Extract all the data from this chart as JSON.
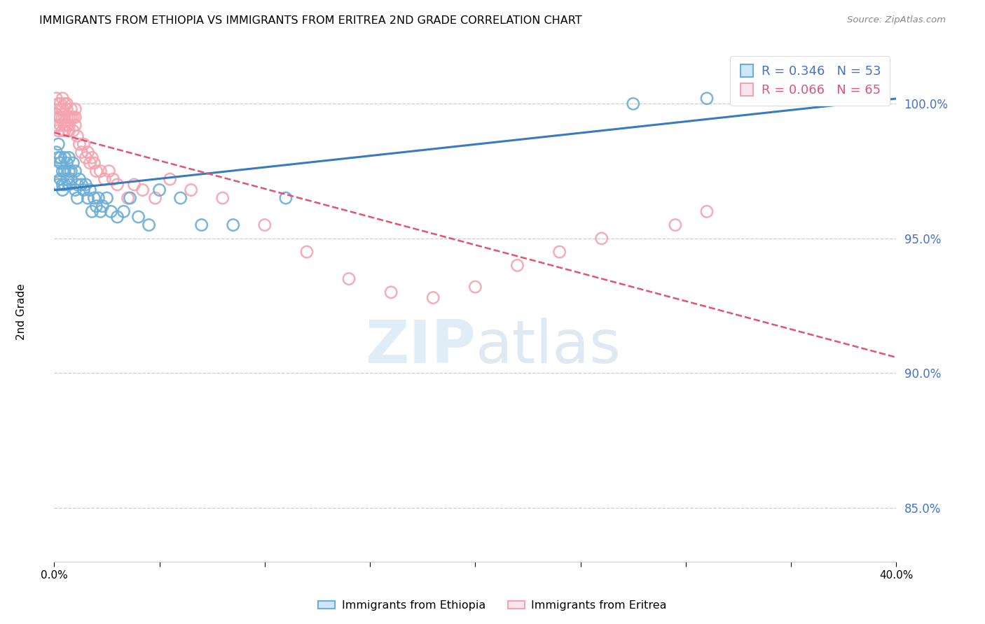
{
  "title": "IMMIGRANTS FROM ETHIOPIA VS IMMIGRANTS FROM ERITREA 2ND GRADE CORRELATION CHART",
  "source": "Source: ZipAtlas.com",
  "ylabel": "2nd Grade",
  "right_yticks": [
    100.0,
    95.0,
    90.0,
    85.0
  ],
  "right_ytick_labels": [
    "100.0%",
    "95.0%",
    "90.0%",
    "85.0%"
  ],
  "ethiopia_color": "#6baed6",
  "eritrea_color": "#f4a4b0",
  "ethiopia_line_color": "#3a7abf",
  "eritrea_line_color": "#e05575",
  "xlim": [
    0.0,
    0.4
  ],
  "ylim": [
    83.0,
    102.0
  ],
  "ethiopia_scatter_x": [
    0.001,
    0.001,
    0.002,
    0.002,
    0.002,
    0.003,
    0.003,
    0.003,
    0.004,
    0.004,
    0.004,
    0.005,
    0.005,
    0.005,
    0.006,
    0.006,
    0.007,
    0.007,
    0.007,
    0.008,
    0.008,
    0.009,
    0.01,
    0.01,
    0.011,
    0.011,
    0.012,
    0.013,
    0.014,
    0.015,
    0.016,
    0.017,
    0.018,
    0.019,
    0.02,
    0.021,
    0.022,
    0.023,
    0.025,
    0.027,
    0.03,
    0.033,
    0.036,
    0.04,
    0.045,
    0.05,
    0.06,
    0.07,
    0.085,
    0.11,
    0.275,
    0.31,
    0.37
  ],
  "ethiopia_scatter_y": [
    98.2,
    97.5,
    98.0,
    97.0,
    98.5,
    97.8,
    97.2,
    98.0,
    97.5,
    97.0,
    96.8,
    97.5,
    97.0,
    98.0,
    97.8,
    97.2,
    97.5,
    97.0,
    98.0,
    97.5,
    97.2,
    97.8,
    97.5,
    96.8,
    97.0,
    96.5,
    97.2,
    97.0,
    96.8,
    97.0,
    96.5,
    96.8,
    96.0,
    96.5,
    96.2,
    96.5,
    96.0,
    96.2,
    96.5,
    96.0,
    95.8,
    96.0,
    96.5,
    95.8,
    95.5,
    96.8,
    96.5,
    95.5,
    95.5,
    96.5,
    100.0,
    100.2,
    100.8
  ],
  "eritrea_scatter_x": [
    0.001,
    0.001,
    0.001,
    0.002,
    0.002,
    0.002,
    0.003,
    0.003,
    0.003,
    0.003,
    0.004,
    0.004,
    0.004,
    0.004,
    0.005,
    0.005,
    0.005,
    0.005,
    0.006,
    0.006,
    0.006,
    0.006,
    0.007,
    0.007,
    0.007,
    0.008,
    0.008,
    0.009,
    0.009,
    0.01,
    0.01,
    0.01,
    0.011,
    0.012,
    0.013,
    0.014,
    0.015,
    0.016,
    0.017,
    0.018,
    0.019,
    0.02,
    0.022,
    0.024,
    0.026,
    0.028,
    0.03,
    0.035,
    0.038,
    0.042,
    0.048,
    0.055,
    0.065,
    0.08,
    0.1,
    0.12,
    0.14,
    0.16,
    0.18,
    0.2,
    0.22,
    0.24,
    0.26,
    0.295,
    0.31
  ],
  "eritrea_scatter_y": [
    99.2,
    99.6,
    100.2,
    99.0,
    99.5,
    100.0,
    99.2,
    99.5,
    99.8,
    100.0,
    99.0,
    99.5,
    99.8,
    100.2,
    99.2,
    99.5,
    99.0,
    100.0,
    99.2,
    99.5,
    99.8,
    100.0,
    99.0,
    99.5,
    99.2,
    99.5,
    99.8,
    99.0,
    99.5,
    99.2,
    99.5,
    99.8,
    98.8,
    98.5,
    98.2,
    98.5,
    98.0,
    98.2,
    97.8,
    98.0,
    97.8,
    97.5,
    97.5,
    97.2,
    97.5,
    97.2,
    97.0,
    96.5,
    97.0,
    96.8,
    96.5,
    97.2,
    96.8,
    96.5,
    95.5,
    94.5,
    93.5,
    93.0,
    92.8,
    93.2,
    94.0,
    94.5,
    95.0,
    95.5,
    96.0
  ]
}
